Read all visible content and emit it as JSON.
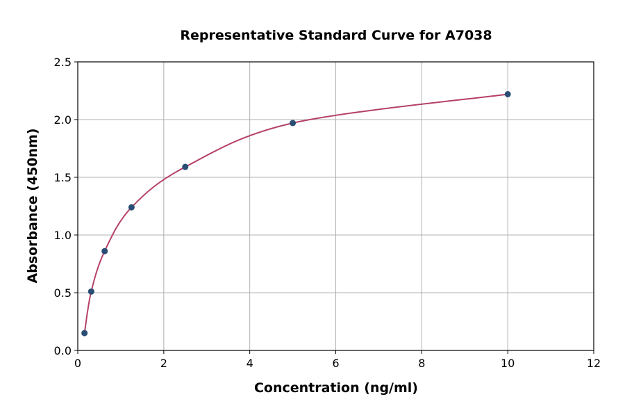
{
  "chart_data": {
    "type": "scatter",
    "title": "Representative Standard Curve for A7038",
    "xlabel": "Concentration (ng/ml)",
    "ylabel": "Absorbance (450nm)",
    "xlim": [
      0,
      12
    ],
    "ylim": [
      0,
      2.5
    ],
    "xticks": [
      "0",
      "2",
      "4",
      "6",
      "8",
      "10",
      "12"
    ],
    "yticks": [
      "0.0",
      "0.5",
      "1.0",
      "1.5",
      "2.0",
      "2.5"
    ],
    "grid": true,
    "legend": "none",
    "points": {
      "x": [
        0.156,
        0.3125,
        0.625,
        1.25,
        2.5,
        5,
        10
      ],
      "y": [
        0.15,
        0.51,
        0.86,
        1.24,
        1.59,
        1.97,
        2.22
      ]
    },
    "fit_curve": "smooth fitted curve through standards",
    "colors": {
      "points": "#2a4d74",
      "curve": "#b5406a"
    }
  }
}
